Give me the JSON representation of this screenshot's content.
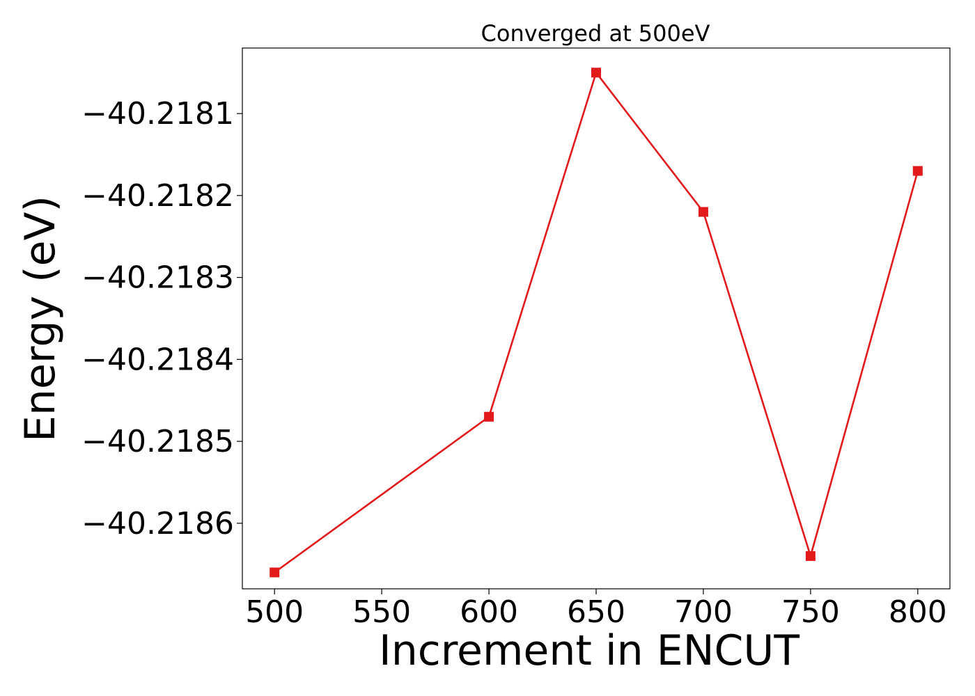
{
  "chart_data": {
    "type": "line",
    "title": "Converged at 500eV",
    "xlabel": "Increment in ENCUT",
    "ylabel": "Energy (eV)",
    "x": [
      500,
      600,
      650,
      700,
      750,
      800
    ],
    "xlim": [
      485,
      815
    ],
    "ylim": [
      -40.21868,
      -40.21802
    ],
    "xticks": [
      500,
      550,
      600,
      650,
      700,
      750,
      800
    ],
    "xtick_labels": [
      "500",
      "550",
      "600",
      "650",
      "700",
      "750",
      "800"
    ],
    "yticks": [
      -40.2181,
      -40.2182,
      -40.2183,
      -40.2184,
      -40.2185,
      -40.2186
    ],
    "ytick_labels": [
      "−40.2181",
      "−40.2182",
      "−40.2183",
      "−40.2184",
      "−40.2185",
      "−40.2186"
    ],
    "grid": false,
    "series": [
      {
        "color": "#e31a1c",
        "marker": "square",
        "values": [
          -40.21866,
          -40.21847,
          -40.21805,
          -40.21822,
          -40.21864,
          -40.21817
        ]
      }
    ]
  }
}
